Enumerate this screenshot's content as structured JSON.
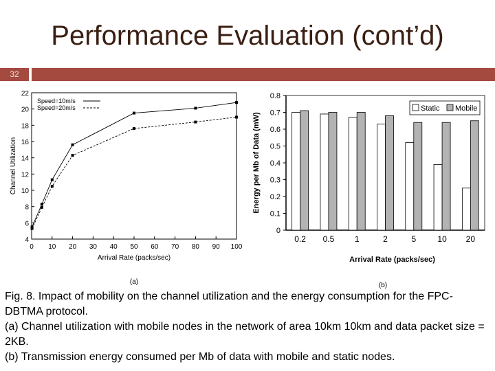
{
  "slide": {
    "title": "Performance Evaluation (cont’d)",
    "number": "32",
    "accent_color": "#a54a3f"
  },
  "chart_data": [
    {
      "type": "line",
      "label": "(a)",
      "xlabel": "Arrival Rate (packs/sec)",
      "ylabel": "Channel Utilization",
      "xlim": [
        0,
        100
      ],
      "ylim": [
        4,
        22
      ],
      "xticks": [
        0,
        10,
        20,
        30,
        40,
        50,
        60,
        70,
        80,
        90,
        100
      ],
      "yticks": [
        4,
        6,
        8,
        10,
        12,
        14,
        16,
        18,
        20,
        22
      ],
      "legend_position": "top-left",
      "series": [
        {
          "name": "Speed=10m/s",
          "style": "solid",
          "x": [
            0.2,
            5,
            10,
            20,
            50,
            80,
            100
          ],
          "y": [
            5.5,
            8.3,
            11.3,
            15.6,
            19.5,
            20.1,
            20.8
          ]
        },
        {
          "name": "Speed=20m/s",
          "style": "dashed",
          "x": [
            0.2,
            5,
            10,
            20,
            50,
            80,
            100
          ],
          "y": [
            5.3,
            7.9,
            10.5,
            14.3,
            17.6,
            18.4,
            19.0
          ]
        }
      ]
    },
    {
      "type": "bar",
      "label": "(b)",
      "xlabel": "Arrival Rate (packs/sec)",
      "ylabel": "Energy per Mb of Data (mW)",
      "categories": [
        "0.2",
        "0.5",
        "1",
        "2",
        "5",
        "10",
        "20"
      ],
      "ylim": [
        0,
        0.8
      ],
      "yticks": [
        "0",
        "0.1",
        "0.2",
        "0.3",
        "0.4",
        "0.5",
        "0.6",
        "0.7",
        "0.8"
      ],
      "legend_position": "top-right",
      "series": [
        {
          "name": "Static",
          "color": "#ffffff",
          "values": [
            0.7,
            0.69,
            0.67,
            0.63,
            0.52,
            0.39,
            0.25
          ]
        },
        {
          "name": "Mobile",
          "color": "#b3b3b3",
          "values": [
            0.71,
            0.7,
            0.7,
            0.68,
            0.64,
            0.64,
            0.65
          ]
        }
      ]
    }
  ],
  "caption": {
    "line1": "Fig. 8.  Impact of mobility on the channel utilization and the energy consumption for the FPC-DBTMA protocol.",
    "line2": "(a) Channel utilization with mobile nodes in the network of area 10km  10km and data packet size = 2KB.",
    "line3": "(b) Transmission energy consumed per Mb of data with mobile and static nodes."
  }
}
